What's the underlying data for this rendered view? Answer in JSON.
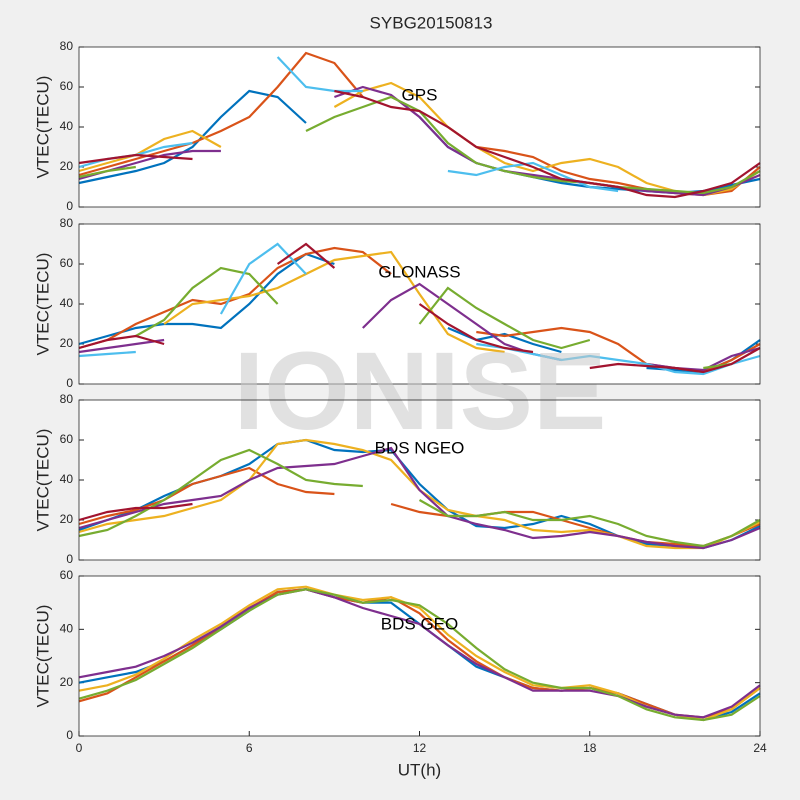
{
  "title": "SYBG20150813",
  "watermark": "IONISE",
  "chart_data": [
    {
      "type": "line",
      "ylabel": "VTEC(TECU)",
      "annotation": "GPS",
      "xlim": [
        0,
        24
      ],
      "ylim": [
        0,
        80
      ],
      "yticks": [
        0,
        20,
        40,
        60,
        80
      ],
      "x": [
        0,
        1,
        2,
        3,
        4,
        5,
        6,
        7,
        8,
        9,
        10,
        11,
        12,
        13,
        14,
        15,
        16,
        17,
        18,
        19,
        20,
        21,
        22,
        23,
        24
      ],
      "series": [
        {
          "color": "#0072BD",
          "values": [
            12,
            15,
            18,
            22,
            30,
            45,
            58,
            55,
            42,
            null,
            null,
            null,
            45,
            30,
            22,
            18,
            15,
            12,
            10,
            9,
            8,
            7,
            8,
            11,
            14
          ]
        },
        {
          "color": "#D95319",
          "values": [
            16,
            20,
            24,
            28,
            32,
            38,
            45,
            60,
            77,
            72,
            55,
            null,
            null,
            40,
            30,
            28,
            25,
            18,
            14,
            12,
            9,
            7,
            6,
            8,
            20
          ]
        },
        {
          "color": "#EDB120",
          "values": [
            18,
            22,
            26,
            34,
            38,
            30,
            null,
            null,
            null,
            50,
            58,
            62,
            55,
            40,
            30,
            22,
            18,
            22,
            24,
            20,
            12,
            8,
            6,
            9,
            18
          ]
        },
        {
          "color": "#7E2F8E",
          "values": [
            14,
            18,
            22,
            26,
            28,
            28,
            null,
            null,
            null,
            55,
            60,
            56,
            45,
            30,
            22,
            18,
            16,
            14,
            12,
            10,
            8,
            7,
            6,
            10,
            16
          ]
        },
        {
          "color": "#77AC30",
          "values": [
            15,
            18,
            20,
            null,
            null,
            null,
            null,
            null,
            38,
            45,
            50,
            55,
            48,
            32,
            22,
            18,
            15,
            13,
            12,
            10,
            9,
            8,
            7,
            10,
            18
          ]
        },
        {
          "color": "#4DBEEE",
          "values": [
            20,
            24,
            26,
            30,
            32,
            null,
            null,
            75,
            60,
            58,
            58,
            null,
            null,
            18,
            16,
            20,
            22,
            16,
            10,
            8,
            null,
            null,
            null,
            null,
            null
          ]
        },
        {
          "color": "#A2142F",
          "values": [
            22,
            24,
            26,
            25,
            24,
            null,
            null,
            null,
            null,
            58,
            55,
            50,
            48,
            40,
            30,
            25,
            20,
            14,
            12,
            10,
            6,
            5,
            8,
            12,
            22
          ]
        }
      ]
    },
    {
      "type": "line",
      "ylabel": "VTEC(TECU)",
      "annotation": "GLONASS",
      "xlim": [
        0,
        24
      ],
      "ylim": [
        0,
        80
      ],
      "yticks": [
        0,
        20,
        40,
        60,
        80
      ],
      "x": [
        0,
        1,
        2,
        3,
        4,
        5,
        6,
        7,
        8,
        9,
        10,
        11,
        12,
        13,
        14,
        15,
        16,
        17,
        18,
        19,
        20,
        21,
        22,
        23,
        24
      ],
      "series": [
        {
          "color": "#0072BD",
          "values": [
            20,
            24,
            28,
            30,
            30,
            28,
            40,
            55,
            65,
            60,
            null,
            null,
            null,
            28,
            22,
            25,
            20,
            16,
            null,
            null,
            8,
            7,
            6,
            12,
            22
          ]
        },
        {
          "color": "#D95319",
          "values": [
            18,
            22,
            30,
            36,
            42,
            40,
            45,
            58,
            65,
            68,
            66,
            55,
            null,
            null,
            26,
            24,
            26,
            28,
            26,
            20,
            10,
            8,
            6,
            12,
            20
          ]
        },
        {
          "color": "#EDB120",
          "values": [
            null,
            null,
            null,
            30,
            40,
            42,
            44,
            48,
            55,
            62,
            64,
            66,
            45,
            25,
            18,
            16,
            null,
            null,
            null,
            null,
            null,
            null,
            null,
            null,
            null
          ]
        },
        {
          "color": "#7E2F8E",
          "values": [
            16,
            18,
            20,
            22,
            null,
            null,
            null,
            null,
            null,
            null,
            28,
            42,
            50,
            40,
            30,
            20,
            15,
            12,
            null,
            null,
            10,
            8,
            7,
            14,
            18
          ]
        },
        {
          "color": "#77AC30",
          "values": [
            null,
            null,
            24,
            32,
            48,
            58,
            55,
            40,
            null,
            null,
            null,
            null,
            30,
            48,
            38,
            30,
            22,
            18,
            22,
            null,
            null,
            null,
            8,
            10,
            null
          ]
        },
        {
          "color": "#4DBEEE",
          "values": [
            14,
            15,
            16,
            null,
            null,
            35,
            60,
            70,
            55,
            null,
            null,
            null,
            null,
            null,
            20,
            18,
            15,
            12,
            14,
            12,
            10,
            6,
            5,
            10,
            14
          ]
        },
        {
          "color": "#A2142F",
          "values": [
            18,
            22,
            24,
            20,
            null,
            null,
            null,
            60,
            70,
            58,
            null,
            null,
            40,
            30,
            22,
            18,
            16,
            null,
            8,
            10,
            9,
            8,
            6,
            10,
            18
          ]
        }
      ]
    },
    {
      "type": "line",
      "ylabel": "VTEC(TECU)",
      "annotation": "BDS NGEO",
      "xlim": [
        0,
        24
      ],
      "ylim": [
        0,
        80
      ],
      "yticks": [
        0,
        20,
        40,
        60,
        80
      ],
      "x": [
        0,
        1,
        2,
        3,
        4,
        5,
        6,
        7,
        8,
        9,
        10,
        11,
        12,
        13,
        14,
        15,
        16,
        17,
        18,
        19,
        20,
        21,
        22,
        23,
        24
      ],
      "series": [
        {
          "color": "#0072BD",
          "values": [
            15,
            20,
            25,
            32,
            38,
            42,
            48,
            58,
            60,
            55,
            54,
            55,
            38,
            25,
            17,
            16,
            18,
            22,
            18,
            12,
            8,
            7,
            6,
            10,
            17
          ]
        },
        {
          "color": "#D95319",
          "values": [
            18,
            22,
            25,
            30,
            38,
            42,
            46,
            38,
            34,
            33,
            null,
            28,
            24,
            22,
            22,
            24,
            24,
            20,
            16,
            12,
            9,
            8,
            7,
            12,
            18
          ]
        },
        {
          "color": "#EDB120",
          "values": [
            14,
            18,
            20,
            22,
            26,
            30,
            40,
            58,
            60,
            58,
            55,
            50,
            35,
            25,
            22,
            20,
            15,
            14,
            15,
            12,
            7,
            6,
            6,
            12,
            19
          ]
        },
        {
          "color": "#7E2F8E",
          "values": [
            16,
            20,
            24,
            28,
            30,
            32,
            40,
            46,
            47,
            48,
            52,
            56,
            35,
            22,
            18,
            15,
            11,
            12,
            14,
            12,
            9,
            7,
            6,
            10,
            16
          ]
        },
        {
          "color": "#77AC30",
          "values": [
            12,
            15,
            22,
            30,
            40,
            50,
            55,
            48,
            40,
            38,
            37,
            null,
            30,
            22,
            22,
            24,
            20,
            20,
            22,
            18,
            12,
            9,
            7,
            12,
            20
          ]
        },
        {
          "color": "#A2142F",
          "values": [
            20,
            24,
            26,
            26,
            28,
            null,
            null,
            null,
            null,
            null,
            null,
            null,
            null,
            null,
            null,
            null,
            null,
            null,
            null,
            null,
            null,
            null,
            null,
            null,
            null
          ]
        }
      ]
    },
    {
      "type": "line",
      "ylabel": "VTEC(TECU)",
      "annotation": "BDS GEO",
      "xlabel": "UT(h)",
      "xlim": [
        0,
        24
      ],
      "ylim": [
        0,
        60
      ],
      "yticks": [
        0,
        20,
        40,
        60
      ],
      "xticks": [
        0,
        6,
        12,
        18,
        24
      ],
      "x": [
        0,
        1,
        2,
        3,
        4,
        5,
        6,
        7,
        8,
        9,
        10,
        11,
        12,
        13,
        14,
        15,
        16,
        17,
        18,
        19,
        20,
        21,
        22,
        23,
        24
      ],
      "series": [
        {
          "color": "#0072BD",
          "values": [
            20,
            22,
            24,
            28,
            34,
            40,
            47,
            54,
            55,
            52,
            50,
            50,
            42,
            34,
            26,
            22,
            18,
            17,
            18,
            16,
            12,
            8,
            6,
            9,
            16
          ]
        },
        {
          "color": "#D95319",
          "values": [
            13,
            16,
            22,
            28,
            34,
            41,
            48,
            54,
            55,
            52,
            50,
            52,
            46,
            36,
            28,
            22,
            18,
            17,
            18,
            16,
            12,
            8,
            7,
            10,
            18
          ]
        },
        {
          "color": "#EDB120",
          "values": [
            17,
            19,
            23,
            29,
            36,
            42,
            49,
            55,
            56,
            53,
            51,
            52,
            48,
            38,
            30,
            24,
            19,
            18,
            19,
            16,
            11,
            8,
            6,
            10,
            18
          ]
        },
        {
          "color": "#7E2F8E",
          "values": [
            22,
            24,
            26,
            30,
            35,
            41,
            48,
            53,
            55,
            52,
            48,
            45,
            42,
            34,
            27,
            22,
            17,
            17,
            17,
            15,
            11,
            8,
            7,
            11,
            19
          ]
        },
        {
          "color": "#77AC30",
          "values": [
            14,
            17,
            21,
            27,
            33,
            40,
            47,
            53,
            55,
            53,
            50,
            51,
            49,
            42,
            33,
            25,
            20,
            18,
            18,
            15,
            10,
            7,
            6,
            8,
            15
          ]
        }
      ]
    }
  ]
}
